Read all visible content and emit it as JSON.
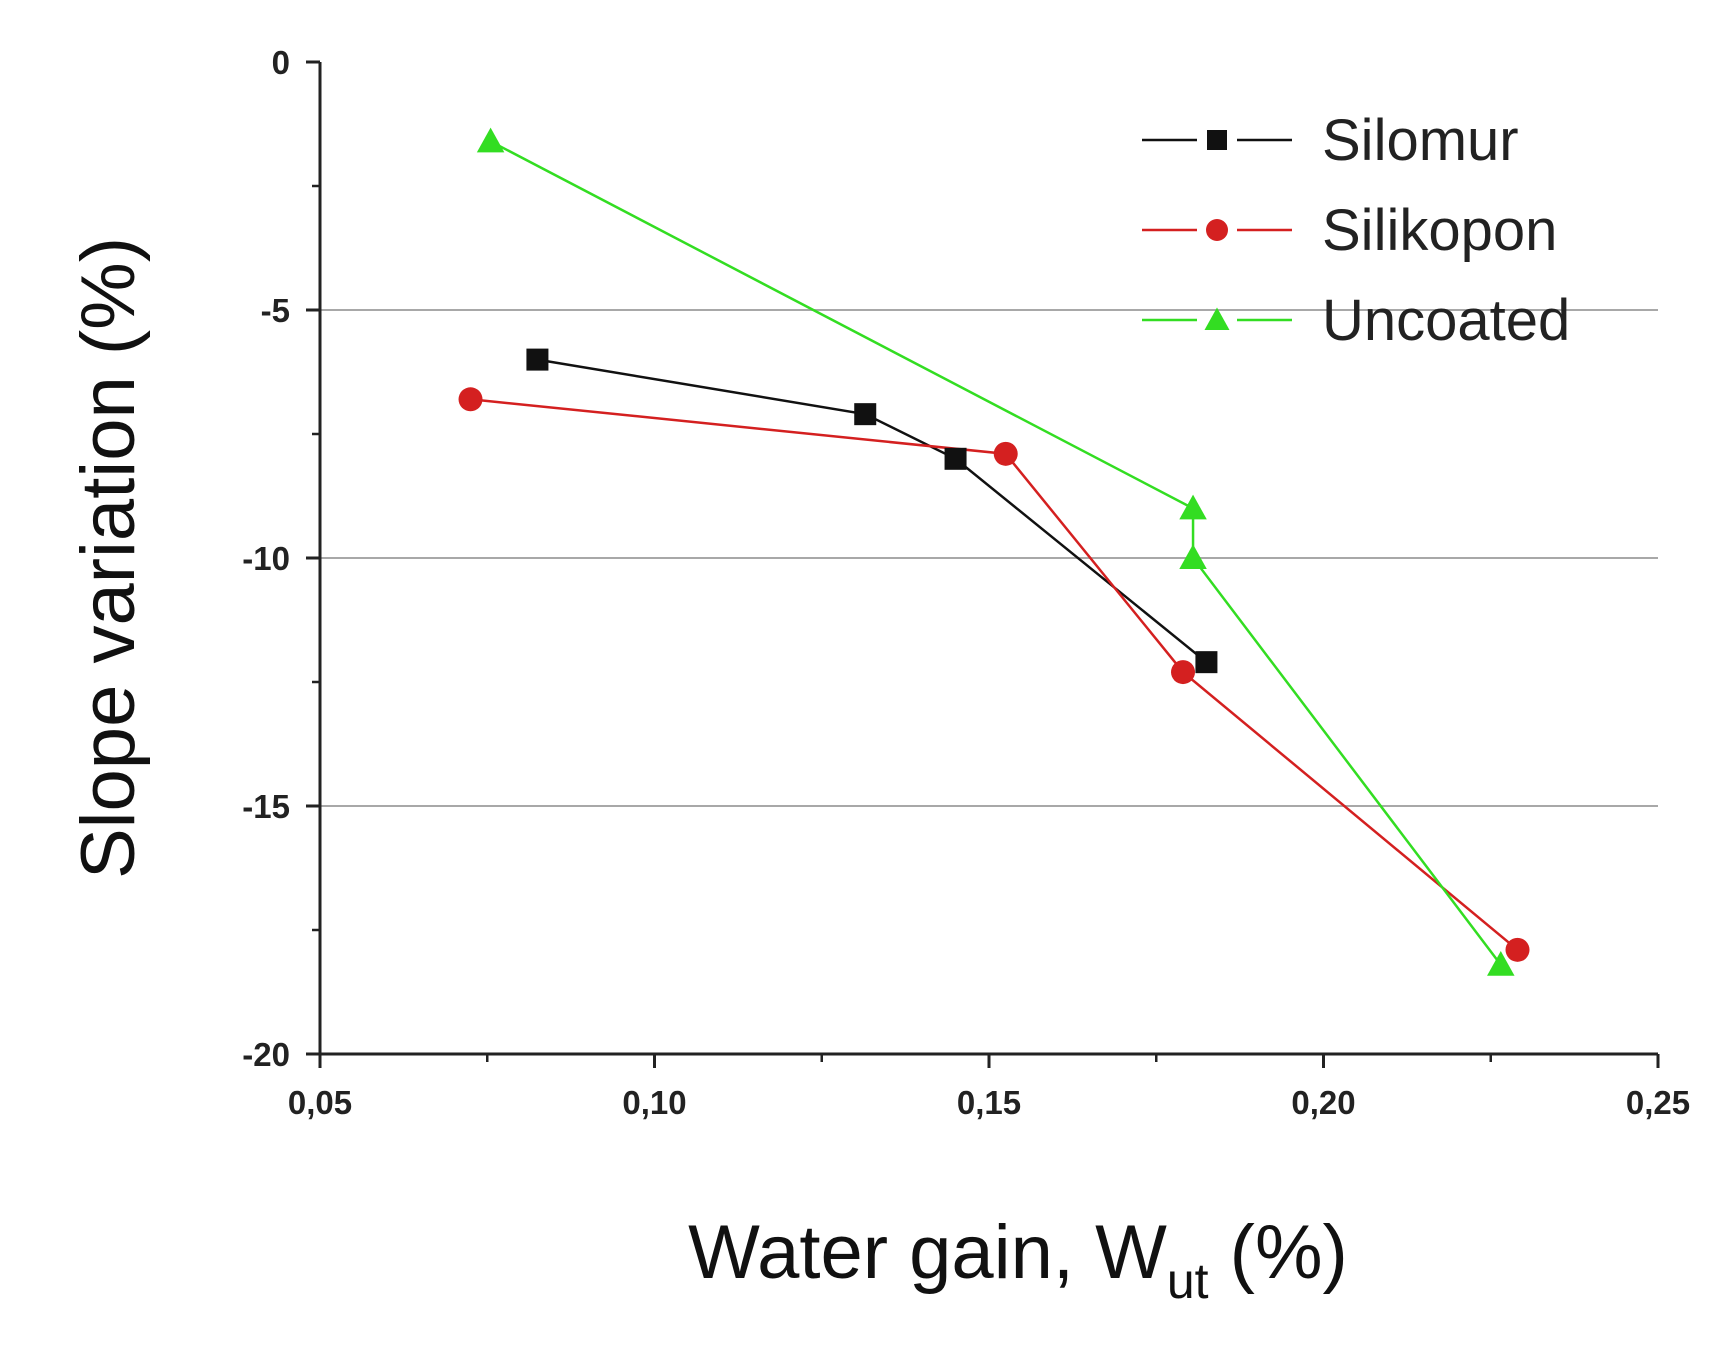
{
  "chart_data": {
    "type": "line",
    "title": "",
    "xlabel": "Water gain, W",
    "xlabel_subscript": "ut",
    "xlabel_suffix": " (%)",
    "ylabel": "Slope variation  (%)",
    "xlim": [
      0.05,
      0.25
    ],
    "ylim": [
      -20,
      0
    ],
    "xticks": [
      0.05,
      0.1,
      0.15,
      0.2,
      0.25
    ],
    "xtick_labels": [
      "0,05",
      "0,10",
      "0,15",
      "0,20",
      "0,25"
    ],
    "yticks": [
      0,
      -5,
      -10,
      -15,
      -20
    ],
    "ytick_labels": [
      "0",
      "-5",
      "-10",
      "-15",
      "-20"
    ],
    "gridlines_y": [
      -5,
      -10,
      -15
    ],
    "legend_position": "top-right",
    "series": [
      {
        "name": "Silomur",
        "color": "#111111",
        "marker": "square",
        "x": [
          0.0825,
          0.1315,
          0.145,
          0.1825
        ],
        "y": [
          -6.0,
          -7.1,
          -8.0,
          -12.1
        ]
      },
      {
        "name": "Silikopon",
        "color": "#d42020",
        "marker": "circle",
        "x": [
          0.0725,
          0.1525,
          0.179,
          0.229
        ],
        "y": [
          -6.8,
          -7.9,
          -12.3,
          -17.9
        ]
      },
      {
        "name": "Uncoated",
        "color": "#33dd22",
        "marker": "triangle",
        "x": [
          0.0755,
          0.1805,
          0.1805,
          0.2265
        ],
        "y": [
          -1.6,
          -9.0,
          -10.0,
          -18.2
        ]
      }
    ]
  }
}
